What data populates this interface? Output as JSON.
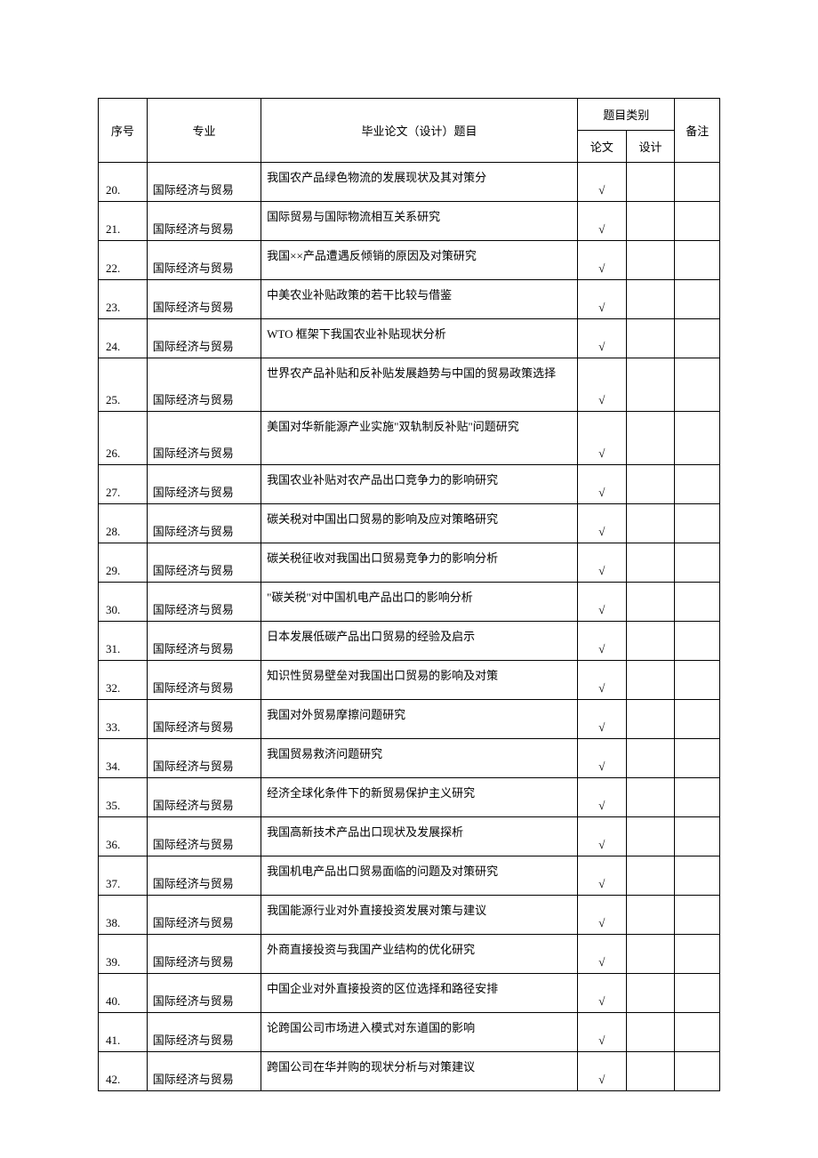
{
  "table": {
    "headers": {
      "seq": "序号",
      "major": "专业",
      "topic": "毕业论文（设计）题目",
      "category": "题目类别",
      "paper": "论文",
      "design": "设计",
      "note": "备注"
    },
    "check_mark": "√",
    "major_text": "国际经济与贸易",
    "rows": [
      {
        "seq": "20.",
        "topic": "我国农产品绿色物流的发展现状及其对策分",
        "paper": true,
        "design": false,
        "tall": false
      },
      {
        "seq": "21.",
        "topic": "国际贸易与国际物流相互关系研究",
        "paper": true,
        "design": false,
        "tall": false
      },
      {
        "seq": "22.",
        "topic": "我国××产品遭遇反倾销的原因及对策研究",
        "paper": true,
        "design": false,
        "tall": false
      },
      {
        "seq": "23.",
        "topic": "中美农业补贴政策的若干比较与借鉴",
        "paper": true,
        "design": false,
        "tall": false
      },
      {
        "seq": "24.",
        "topic": "WTO 框架下我国农业补贴现状分析",
        "paper": true,
        "design": false,
        "tall": false
      },
      {
        "seq": "25.",
        "topic": "世界农产品补贴和反补贴发展趋势与中国的贸易政策选择",
        "paper": true,
        "design": false,
        "tall": true
      },
      {
        "seq": "26.",
        "topic": "美国对华新能源产业实施\"双轨制反补贴\"问题研究",
        "paper": true,
        "design": false,
        "tall": true
      },
      {
        "seq": "27.",
        "topic": "我国农业补贴对农产品出口竞争力的影响研究",
        "paper": true,
        "design": false,
        "tall": false
      },
      {
        "seq": "28.",
        "topic": "碳关税对中国出口贸易的影响及应对策略研究",
        "paper": true,
        "design": false,
        "tall": false
      },
      {
        "seq": "29.",
        "topic": "碳关税征收对我国出口贸易竞争力的影响分析",
        "paper": true,
        "design": false,
        "tall": false
      },
      {
        "seq": "30.",
        "topic": "\"碳关税\"对中国机电产品出口的影响分析",
        "paper": true,
        "design": false,
        "tall": false
      },
      {
        "seq": "31.",
        "topic": "日本发展低碳产品出口贸易的经验及启示",
        "paper": true,
        "design": false,
        "tall": false
      },
      {
        "seq": "32.",
        "topic": "知识性贸易壁垒对我国出口贸易的影响及对策",
        "paper": true,
        "design": false,
        "tall": false
      },
      {
        "seq": "33.",
        "topic": "我国对外贸易摩擦问题研究",
        "paper": true,
        "design": false,
        "tall": false
      },
      {
        "seq": "34.",
        "topic": "我国贸易救济问题研究",
        "paper": true,
        "design": false,
        "tall": false
      },
      {
        "seq": "35.",
        "topic": "经济全球化条件下的新贸易保护主义研究",
        "paper": true,
        "design": false,
        "tall": false
      },
      {
        "seq": "36.",
        "topic": "我国高新技术产品出口现状及发展探析",
        "paper": true,
        "design": false,
        "tall": false
      },
      {
        "seq": "37.",
        "topic": "我国机电产品出口贸易面临的问题及对策研究",
        "paper": true,
        "design": false,
        "tall": false
      },
      {
        "seq": "38.",
        "topic": "我国能源行业对外直接投资发展对策与建议",
        "paper": true,
        "design": false,
        "tall": false
      },
      {
        "seq": "39.",
        "topic": "外商直接投资与我国产业结构的优化研究",
        "paper": true,
        "design": false,
        "tall": false
      },
      {
        "seq": "40.",
        "topic": "中国企业对外直接投资的区位选择和路径安排",
        "paper": true,
        "design": false,
        "tall": false
      },
      {
        "seq": "41.",
        "topic": "论跨国公司市场进入模式对东道国的影响",
        "paper": true,
        "design": false,
        "tall": false
      },
      {
        "seq": "42.",
        "topic": "跨国公司在华并购的现状分析与对策建议",
        "paper": true,
        "design": false,
        "tall": false
      }
    ]
  }
}
